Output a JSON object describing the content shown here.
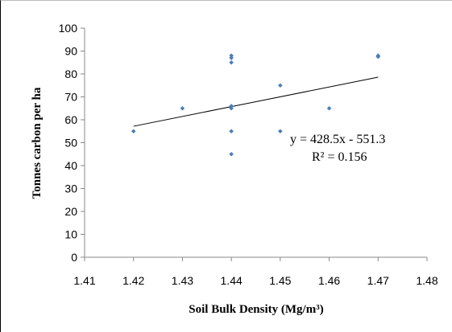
{
  "chart_data": {
    "type": "scatter",
    "title": "",
    "xlabel": "Soil Bulk Density (Mg/m³)",
    "ylabel": "Tonnes carbon per ha",
    "xlim": [
      1.41,
      1.48
    ],
    "ylim": [
      0,
      100
    ],
    "x_ticks": [
      "1.41",
      "1.42",
      "1.43",
      "1.44",
      "1.45",
      "1.46",
      "1.47",
      "1.48"
    ],
    "y_ticks": [
      "0",
      "10",
      "20",
      "30",
      "40",
      "50",
      "60",
      "70",
      "80",
      "90",
      "100"
    ],
    "grid": false,
    "legend": "none",
    "point_color": "#4a7ebb",
    "points": [
      {
        "x": 1.42,
        "y": 55
      },
      {
        "x": 1.43,
        "y": 65
      },
      {
        "x": 1.44,
        "y": 88
      },
      {
        "x": 1.44,
        "y": 87
      },
      {
        "x": 1.44,
        "y": 85
      },
      {
        "x": 1.44,
        "y": 66
      },
      {
        "x": 1.44,
        "y": 65
      },
      {
        "x": 1.44,
        "y": 55
      },
      {
        "x": 1.44,
        "y": 45
      },
      {
        "x": 1.45,
        "y": 75
      },
      {
        "x": 1.45,
        "y": 55
      },
      {
        "x": 1.46,
        "y": 65
      },
      {
        "x": 1.47,
        "y": 88
      },
      {
        "x": 1.47,
        "y": 87.5
      }
    ],
    "trendline": {
      "slope": 428.5,
      "intercept": -551.3,
      "x_range": [
        1.42,
        1.47
      ],
      "style": "linear"
    },
    "annotations": {
      "equation": "y = 428.5x - 551.3",
      "r_squared": "R² = 0.156"
    }
  }
}
